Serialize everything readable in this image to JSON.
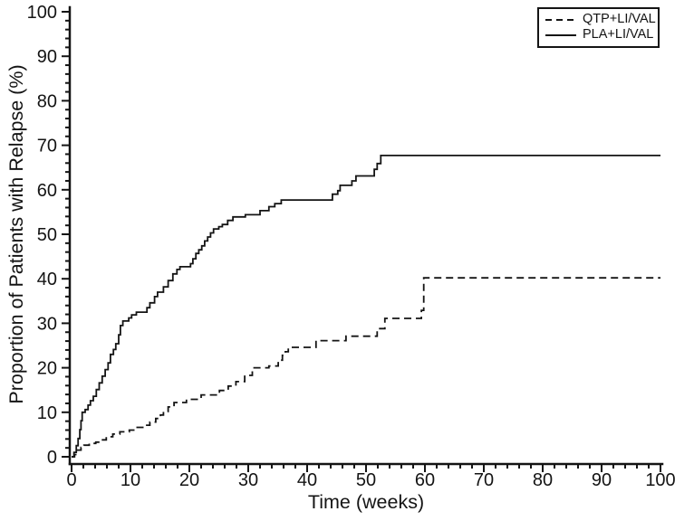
{
  "figure": {
    "background": "#ffffff",
    "ink_color": "#141414"
  },
  "chart_data": {
    "type": "line",
    "subtype": "kaplan-meier-step-curves",
    "title": "",
    "xlabel": "Time (weeks)",
    "ylabel": "Proportion of Patients with Relapse (%)",
    "xlim": [
      0,
      100
    ],
    "ylim": [
      0,
      100
    ],
    "x_ticks": [
      0,
      10,
      20,
      30,
      40,
      50,
      60,
      70,
      80,
      90,
      100
    ],
    "y_ticks": [
      0,
      10,
      20,
      30,
      40,
      50,
      60,
      70,
      80,
      90,
      100
    ],
    "minor_tick_interval": 2,
    "grid": false,
    "legend_position": "top-right",
    "series": [
      {
        "name": "QTP+LI/VAL",
        "style": "dashed",
        "steps": [
          [
            0,
            0
          ],
          [
            0.5,
            0.5
          ],
          [
            1,
            1.5
          ],
          [
            1.6,
            2.1
          ],
          [
            2.1,
            2.6
          ],
          [
            3,
            3
          ],
          [
            4.1,
            3.3
          ],
          [
            4.6,
            3.8
          ],
          [
            5.9,
            4.5
          ],
          [
            7,
            5.1
          ],
          [
            8.2,
            5.6
          ],
          [
            9.8,
            6
          ],
          [
            10.8,
            6.6
          ],
          [
            12.1,
            7.1
          ],
          [
            13.3,
            7.8
          ],
          [
            14.3,
            8.6
          ],
          [
            15.1,
            9.4
          ],
          [
            15.6,
            10.2
          ],
          [
            16.4,
            11.2
          ],
          [
            17.4,
            12.2
          ],
          [
            19.5,
            12.9
          ],
          [
            22,
            13.9
          ],
          [
            25.1,
            14.9
          ],
          [
            26.6,
            15.9
          ],
          [
            27.9,
            16.9
          ],
          [
            29.4,
            18.3
          ],
          [
            30.7,
            20
          ],
          [
            33.5,
            20.4
          ],
          [
            35.1,
            21.7
          ],
          [
            35.8,
            22.8
          ],
          [
            36.3,
            23.6
          ],
          [
            36.8,
            24.6
          ],
          [
            41.5,
            26.1
          ],
          [
            46.6,
            27.1
          ],
          [
            51.9,
            28.8
          ],
          [
            53.2,
            31.1
          ],
          [
            59.4,
            32.9
          ],
          [
            59.8,
            40.2
          ],
          [
            100,
            40.2
          ]
        ]
      },
      {
        "name": "PLA+LI/VAL",
        "style": "solid",
        "steps": [
          [
            0,
            0
          ],
          [
            0.4,
            1
          ],
          [
            0.8,
            2.5
          ],
          [
            1.1,
            4.1
          ],
          [
            1.4,
            6.1
          ],
          [
            1.6,
            8.1
          ],
          [
            1.8,
            10
          ],
          [
            2.3,
            10.6
          ],
          [
            2.8,
            11.6
          ],
          [
            3.2,
            12.6
          ],
          [
            3.7,
            13.6
          ],
          [
            4.2,
            15.1
          ],
          [
            4.7,
            16.6
          ],
          [
            5.2,
            18.1
          ],
          [
            5.7,
            19.6
          ],
          [
            6.2,
            21.1
          ],
          [
            6.6,
            23
          ],
          [
            7.1,
            24.1
          ],
          [
            7.5,
            25.4
          ],
          [
            8,
            27.4
          ],
          [
            8.3,
            29.5
          ],
          [
            8.7,
            30.5
          ],
          [
            9.7,
            31.2
          ],
          [
            10.2,
            31.9
          ],
          [
            11,
            32.5
          ],
          [
            12.8,
            33.5
          ],
          [
            13.3,
            34.6
          ],
          [
            14.1,
            36
          ],
          [
            14.6,
            37
          ],
          [
            15.6,
            38.2
          ],
          [
            16.4,
            39.6
          ],
          [
            17.2,
            41.1
          ],
          [
            17.9,
            42.1
          ],
          [
            18.4,
            42.7
          ],
          [
            20.2,
            43.4
          ],
          [
            20.6,
            44.5
          ],
          [
            21.1,
            45.7
          ],
          [
            21.6,
            46.5
          ],
          [
            22.1,
            47.4
          ],
          [
            22.6,
            48.5
          ],
          [
            23.1,
            49.4
          ],
          [
            23.6,
            50.3
          ],
          [
            24.1,
            51.2
          ],
          [
            25,
            51.7
          ],
          [
            25.6,
            52.2
          ],
          [
            26.5,
            53.1
          ],
          [
            27.4,
            53.9
          ],
          [
            29.5,
            54.4
          ],
          [
            32,
            55.3
          ],
          [
            33.5,
            56.2
          ],
          [
            34.5,
            56.9
          ],
          [
            35.6,
            57.7
          ],
          [
            44.3,
            59
          ],
          [
            45.2,
            59.8
          ],
          [
            45.6,
            61
          ],
          [
            47.6,
            62
          ],
          [
            48.3,
            63.1
          ],
          [
            51.4,
            64.6
          ],
          [
            51.9,
            65.9
          ],
          [
            52.5,
            67.7
          ],
          [
            100,
            67.7
          ]
        ]
      }
    ]
  }
}
